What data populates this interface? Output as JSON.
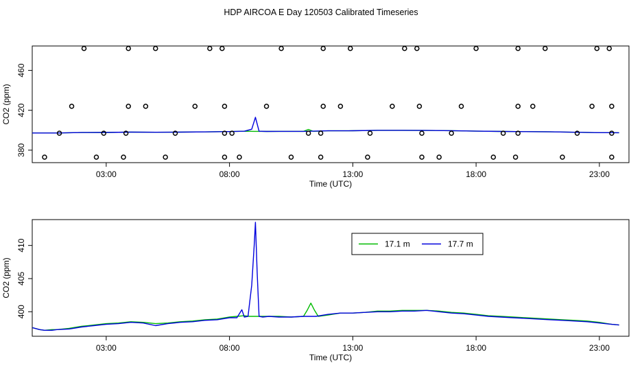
{
  "title": "HDP AIRCOA E  Day 120503  Calibrated Timeseries",
  "colors": {
    "green": "#00bb00",
    "blue": "#0000dd",
    "axis": "#000000"
  },
  "chart_data": [
    {
      "type": "line",
      "panel": "top",
      "xlabel": "Time (UTC)",
      "ylabel": "CO2 (ppm)",
      "xlim": [
        0,
        24.2
      ],
      "ylim": [
        367.5,
        484.5
      ],
      "xticks": [
        {
          "v": 3,
          "label": "03:00"
        },
        {
          "v": 8,
          "label": "08:00"
        },
        {
          "v": 13,
          "label": "13:00"
        },
        {
          "v": 18,
          "label": "18:00"
        },
        {
          "v": 23,
          "label": "23:00"
        }
      ],
      "yticks": [
        {
          "v": 380,
          "label": "380"
        },
        {
          "v": 420,
          "label": "420"
        },
        {
          "v": 460,
          "label": "460"
        }
      ],
      "points_series": {
        "name": "",
        "x": [
          2.1,
          3.9,
          5.0,
          7.2,
          7.7,
          10.1,
          11.8,
          12.9,
          15.1,
          15.6,
          18.0,
          19.7,
          20.8,
          22.9,
          23.4,
          1.6,
          3.9,
          4.6,
          6.6,
          7.8,
          9.5,
          11.8,
          12.5,
          14.6,
          15.7,
          17.4,
          19.7,
          20.3,
          22.7,
          23.5,
          1.1,
          2.9,
          3.8,
          5.8,
          7.8,
          8.1,
          11.2,
          11.7,
          13.7,
          15.8,
          17.0,
          19.1,
          19.7,
          22.1,
          23.5,
          0.5,
          2.6,
          3.7,
          5.4,
          7.8,
          8.4,
          10.5,
          11.7,
          13.6,
          15.8,
          16.5,
          18.7,
          19.6,
          21.5,
          23.5
        ],
        "y": [
          482,
          482,
          482,
          482,
          482,
          482,
          482,
          482,
          482,
          482,
          482,
          482,
          482,
          482,
          482,
          424,
          424,
          424,
          424,
          424,
          424,
          424,
          424,
          424,
          424,
          424,
          424,
          424,
          424,
          424,
          397,
          397,
          397,
          397,
          397,
          397,
          397,
          397,
          397,
          397,
          397,
          397,
          397,
          397,
          397,
          373,
          373,
          373,
          373,
          373,
          373,
          373,
          373,
          373,
          373,
          373,
          373,
          373,
          373,
          373
        ]
      },
      "series": [
        {
          "name": "",
          "color": "green",
          "x": [
            0,
            1,
            2,
            3,
            4,
            5,
            6,
            7,
            8,
            8.6,
            9,
            9.5,
            10,
            11,
            11.2,
            11.4,
            12,
            13,
            14,
            15,
            16,
            17,
            18,
            19,
            20,
            21,
            22,
            23,
            23.8
          ],
          "y": [
            397.2,
            397.2,
            397.7,
            397.8,
            398.1,
            398,
            398.1,
            398.3,
            398.7,
            399,
            398.9,
            398.8,
            398.9,
            398.9,
            400.8,
            398.9,
            399.4,
            399.5,
            399.9,
            399.9,
            399.8,
            399.6,
            399.1,
            398.8,
            398.6,
            398.4,
            398.0,
            397.6,
            397.5
          ]
        },
        {
          "name": "",
          "color": "blue",
          "x": [
            0,
            1,
            2,
            3,
            4,
            5,
            6,
            7,
            8,
            8.6,
            8.9,
            9.05,
            9.2,
            9.5,
            10,
            11,
            12,
            13,
            14,
            15,
            16,
            17,
            18,
            19,
            20,
            21,
            22,
            23,
            23.8
          ],
          "y": [
            397.2,
            397.2,
            397.7,
            397.8,
            398.1,
            398,
            398.1,
            398.3,
            398.7,
            399,
            401,
            413,
            399,
            398.8,
            398.9,
            398.9,
            399.4,
            399.5,
            399.9,
            399.9,
            399.8,
            399.6,
            399.1,
            398.8,
            398.6,
            398.4,
            398.0,
            397.6,
            397.5
          ]
        }
      ]
    },
    {
      "type": "line",
      "panel": "bottom",
      "xlabel": "Time (UTC)",
      "ylabel": "CO2 (ppm)",
      "xlim": [
        0,
        24.2
      ],
      "ylim": [
        396.3,
        413.9
      ],
      "xticks": [
        {
          "v": 3,
          "label": "03:00"
        },
        {
          "v": 8,
          "label": "08:00"
        },
        {
          "v": 13,
          "label": "13:00"
        },
        {
          "v": 18,
          "label": "18:00"
        },
        {
          "v": 23,
          "label": "23:00"
        }
      ],
      "yticks": [
        {
          "v": 400,
          "label": "400"
        },
        {
          "v": 405,
          "label": "405"
        },
        {
          "v": 410,
          "label": "410"
        }
      ],
      "legend": {
        "position": "top-right-center",
        "entries": [
          {
            "name": "17.1 m",
            "color": "green"
          },
          {
            "name": "17.7 m",
            "color": "blue"
          }
        ]
      },
      "series": [
        {
          "name": "17.1 m",
          "color": "green",
          "x": [
            0,
            0.3,
            0.5,
            0.8,
            1,
            1.5,
            2,
            2.5,
            3,
            3.5,
            4,
            4.5,
            5,
            5.5,
            6,
            6.5,
            7,
            7.5,
            8,
            8.3,
            8.6,
            8.8,
            9,
            9.3,
            9.6,
            10,
            10.5,
            11,
            11.15,
            11.3,
            11.45,
            11.6,
            12,
            12.5,
            13,
            13.5,
            14,
            14.5,
            15,
            15.5,
            16,
            16.5,
            17,
            17.5,
            18,
            18.5,
            19,
            19.5,
            20,
            20.5,
            21,
            21.5,
            22,
            22.5,
            23,
            23.5,
            23.8
          ],
          "y": [
            397.6,
            397.3,
            397.2,
            397.3,
            397.3,
            397.5,
            397.8,
            398,
            398.2,
            398.3,
            398.5,
            398.4,
            398.2,
            398.3,
            398.5,
            398.6,
            398.8,
            398.9,
            399.2,
            399.3,
            399.4,
            399.3,
            399.3,
            399.3,
            399.3,
            399.3,
            399.2,
            399.3,
            400.2,
            401.3,
            400.2,
            399.3,
            399.5,
            399.8,
            399.8,
            399.9,
            400.1,
            400.1,
            400.2,
            400.2,
            400.2,
            400.1,
            399.9,
            399.8,
            399.6,
            399.4,
            399.3,
            399.2,
            399.1,
            399,
            398.9,
            398.8,
            398.7,
            398.6,
            398.4,
            398.1,
            398
          ]
        },
        {
          "name": "17.7 m",
          "color": "blue",
          "x": [
            0,
            0.3,
            0.5,
            0.8,
            1,
            1.5,
            2,
            2.5,
            3,
            3.5,
            4,
            4.5,
            5,
            5.5,
            6,
            6.5,
            7,
            7.5,
            8,
            8.3,
            8.5,
            8.6,
            8.75,
            8.9,
            9.0,
            9.05,
            9.12,
            9.2,
            9.35,
            9.6,
            10,
            10.5,
            11,
            11.5,
            12,
            12.5,
            13,
            13.5,
            14,
            14.5,
            15,
            15.5,
            16,
            16.5,
            17,
            17.5,
            18,
            18.5,
            19,
            19.5,
            20,
            20.5,
            21,
            21.5,
            22,
            22.5,
            23,
            23.5,
            23.8
          ],
          "y": [
            397.6,
            397.3,
            397.2,
            397.2,
            397.3,
            397.4,
            397.7,
            397.9,
            398.1,
            398.2,
            398.4,
            398.3,
            397.9,
            398.2,
            398.4,
            398.5,
            398.7,
            398.8,
            399.1,
            399.1,
            400.3,
            399.2,
            399.3,
            404,
            410,
            413.5,
            406,
            399.3,
            399.2,
            399.3,
            399.2,
            399.2,
            399.3,
            399.3,
            399.6,
            399.8,
            399.8,
            399.9,
            400,
            400,
            400.1,
            400.1,
            400.2,
            400,
            399.8,
            399.7,
            399.5,
            399.3,
            399.2,
            399.1,
            399,
            398.9,
            398.8,
            398.7,
            398.6,
            398.5,
            398.3,
            398.1,
            398
          ]
        }
      ]
    }
  ]
}
